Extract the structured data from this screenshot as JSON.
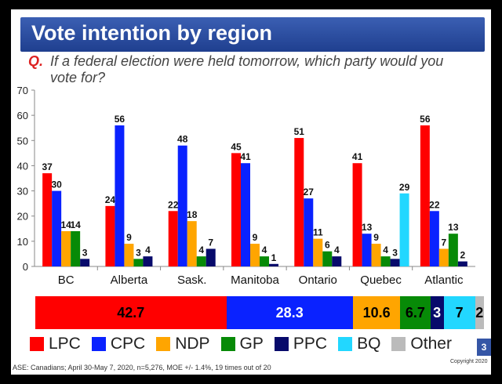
{
  "slide": {
    "title": "Vote intention by region",
    "question_marker": "Q.",
    "question": "If a federal election were held tomorrow, which party would you vote for?",
    "page_number": "3",
    "base": "ASE: Canadians; April 30-May 7, 2020, n=5,276, MOE +/- 1.4%, 19 times out of 20",
    "copyright": "Copyright 2020"
  },
  "colors": {
    "LPC": "#ff0000",
    "CPC": "#0a22ff",
    "NDP": "#ffa500",
    "GP": "#078a07",
    "PPC": "#070a6b",
    "BQ": "#22d7ff",
    "Other": "#bbbbbb"
  },
  "chart_data": [
    {
      "type": "bar",
      "categories": [
        "BC",
        "Alberta",
        "Sask.",
        "Manitoba",
        "Ontario",
        "Quebec",
        "Atlantic"
      ],
      "ylim": [
        0,
        70
      ],
      "yticks": [
        0,
        10,
        20,
        30,
        40,
        50,
        60,
        70
      ],
      "series": [
        {
          "name": "LPC",
          "values": [
            37,
            24,
            22,
            45,
            51,
            41,
            56
          ]
        },
        {
          "name": "CPC",
          "values": [
            30,
            56,
            48,
            41,
            27,
            13,
            22
          ]
        },
        {
          "name": "NDP",
          "values": [
            14,
            9,
            18,
            9,
            11,
            9,
            7
          ]
        },
        {
          "name": "GP",
          "values": [
            14,
            3,
            4,
            4,
            6,
            4,
            13
          ]
        },
        {
          "name": "PPC",
          "values": [
            3,
            4,
            7,
            1,
            4,
            3,
            2
          ]
        },
        {
          "name": "BQ",
          "values": [
            null,
            null,
            null,
            null,
            null,
            29,
            null
          ]
        }
      ],
      "value_labels": [
        [
          "37",
          "30",
          "14",
          "14",
          "3"
        ],
        [
          "24",
          "56",
          "9",
          "3",
          "4"
        ],
        [
          "22",
          "48",
          "18",
          "4",
          "7"
        ],
        [
          "45",
          "41",
          "9",
          "4",
          "1"
        ],
        [
          "51",
          "27",
          "11",
          "6",
          "4"
        ],
        [
          "41",
          "13",
          "9",
          "4",
          "3",
          "29"
        ],
        [
          "56",
          "22",
          "7",
          "13",
          "2"
        ]
      ],
      "grid": false,
      "legend": "bottom"
    },
    {
      "type": "bar",
      "orientation": "horizontal-stacked",
      "segments": [
        {
          "name": "LPC",
          "value": 42.7,
          "label": "42.7"
        },
        {
          "name": "CPC",
          "value": 28.3,
          "label": "28.3"
        },
        {
          "name": "NDP",
          "value": 10.6,
          "label": "10.6"
        },
        {
          "name": "GP",
          "value": 6.7,
          "label": "6.7"
        },
        {
          "name": "PPC",
          "value": 3,
          "label": "3"
        },
        {
          "name": "BQ",
          "value": 7,
          "label": "7"
        },
        {
          "name": "Other",
          "value": 2,
          "label": "2"
        }
      ]
    }
  ],
  "legend": [
    {
      "name": "LPC",
      "label": "LPC"
    },
    {
      "name": "CPC",
      "label": "CPC"
    },
    {
      "name": "NDP",
      "label": "NDP"
    },
    {
      "name": "GP",
      "label": "GP"
    },
    {
      "name": "PPC",
      "label": "PPC"
    },
    {
      "name": "BQ",
      "label": "BQ"
    },
    {
      "name": "Other",
      "label": "Other"
    }
  ]
}
